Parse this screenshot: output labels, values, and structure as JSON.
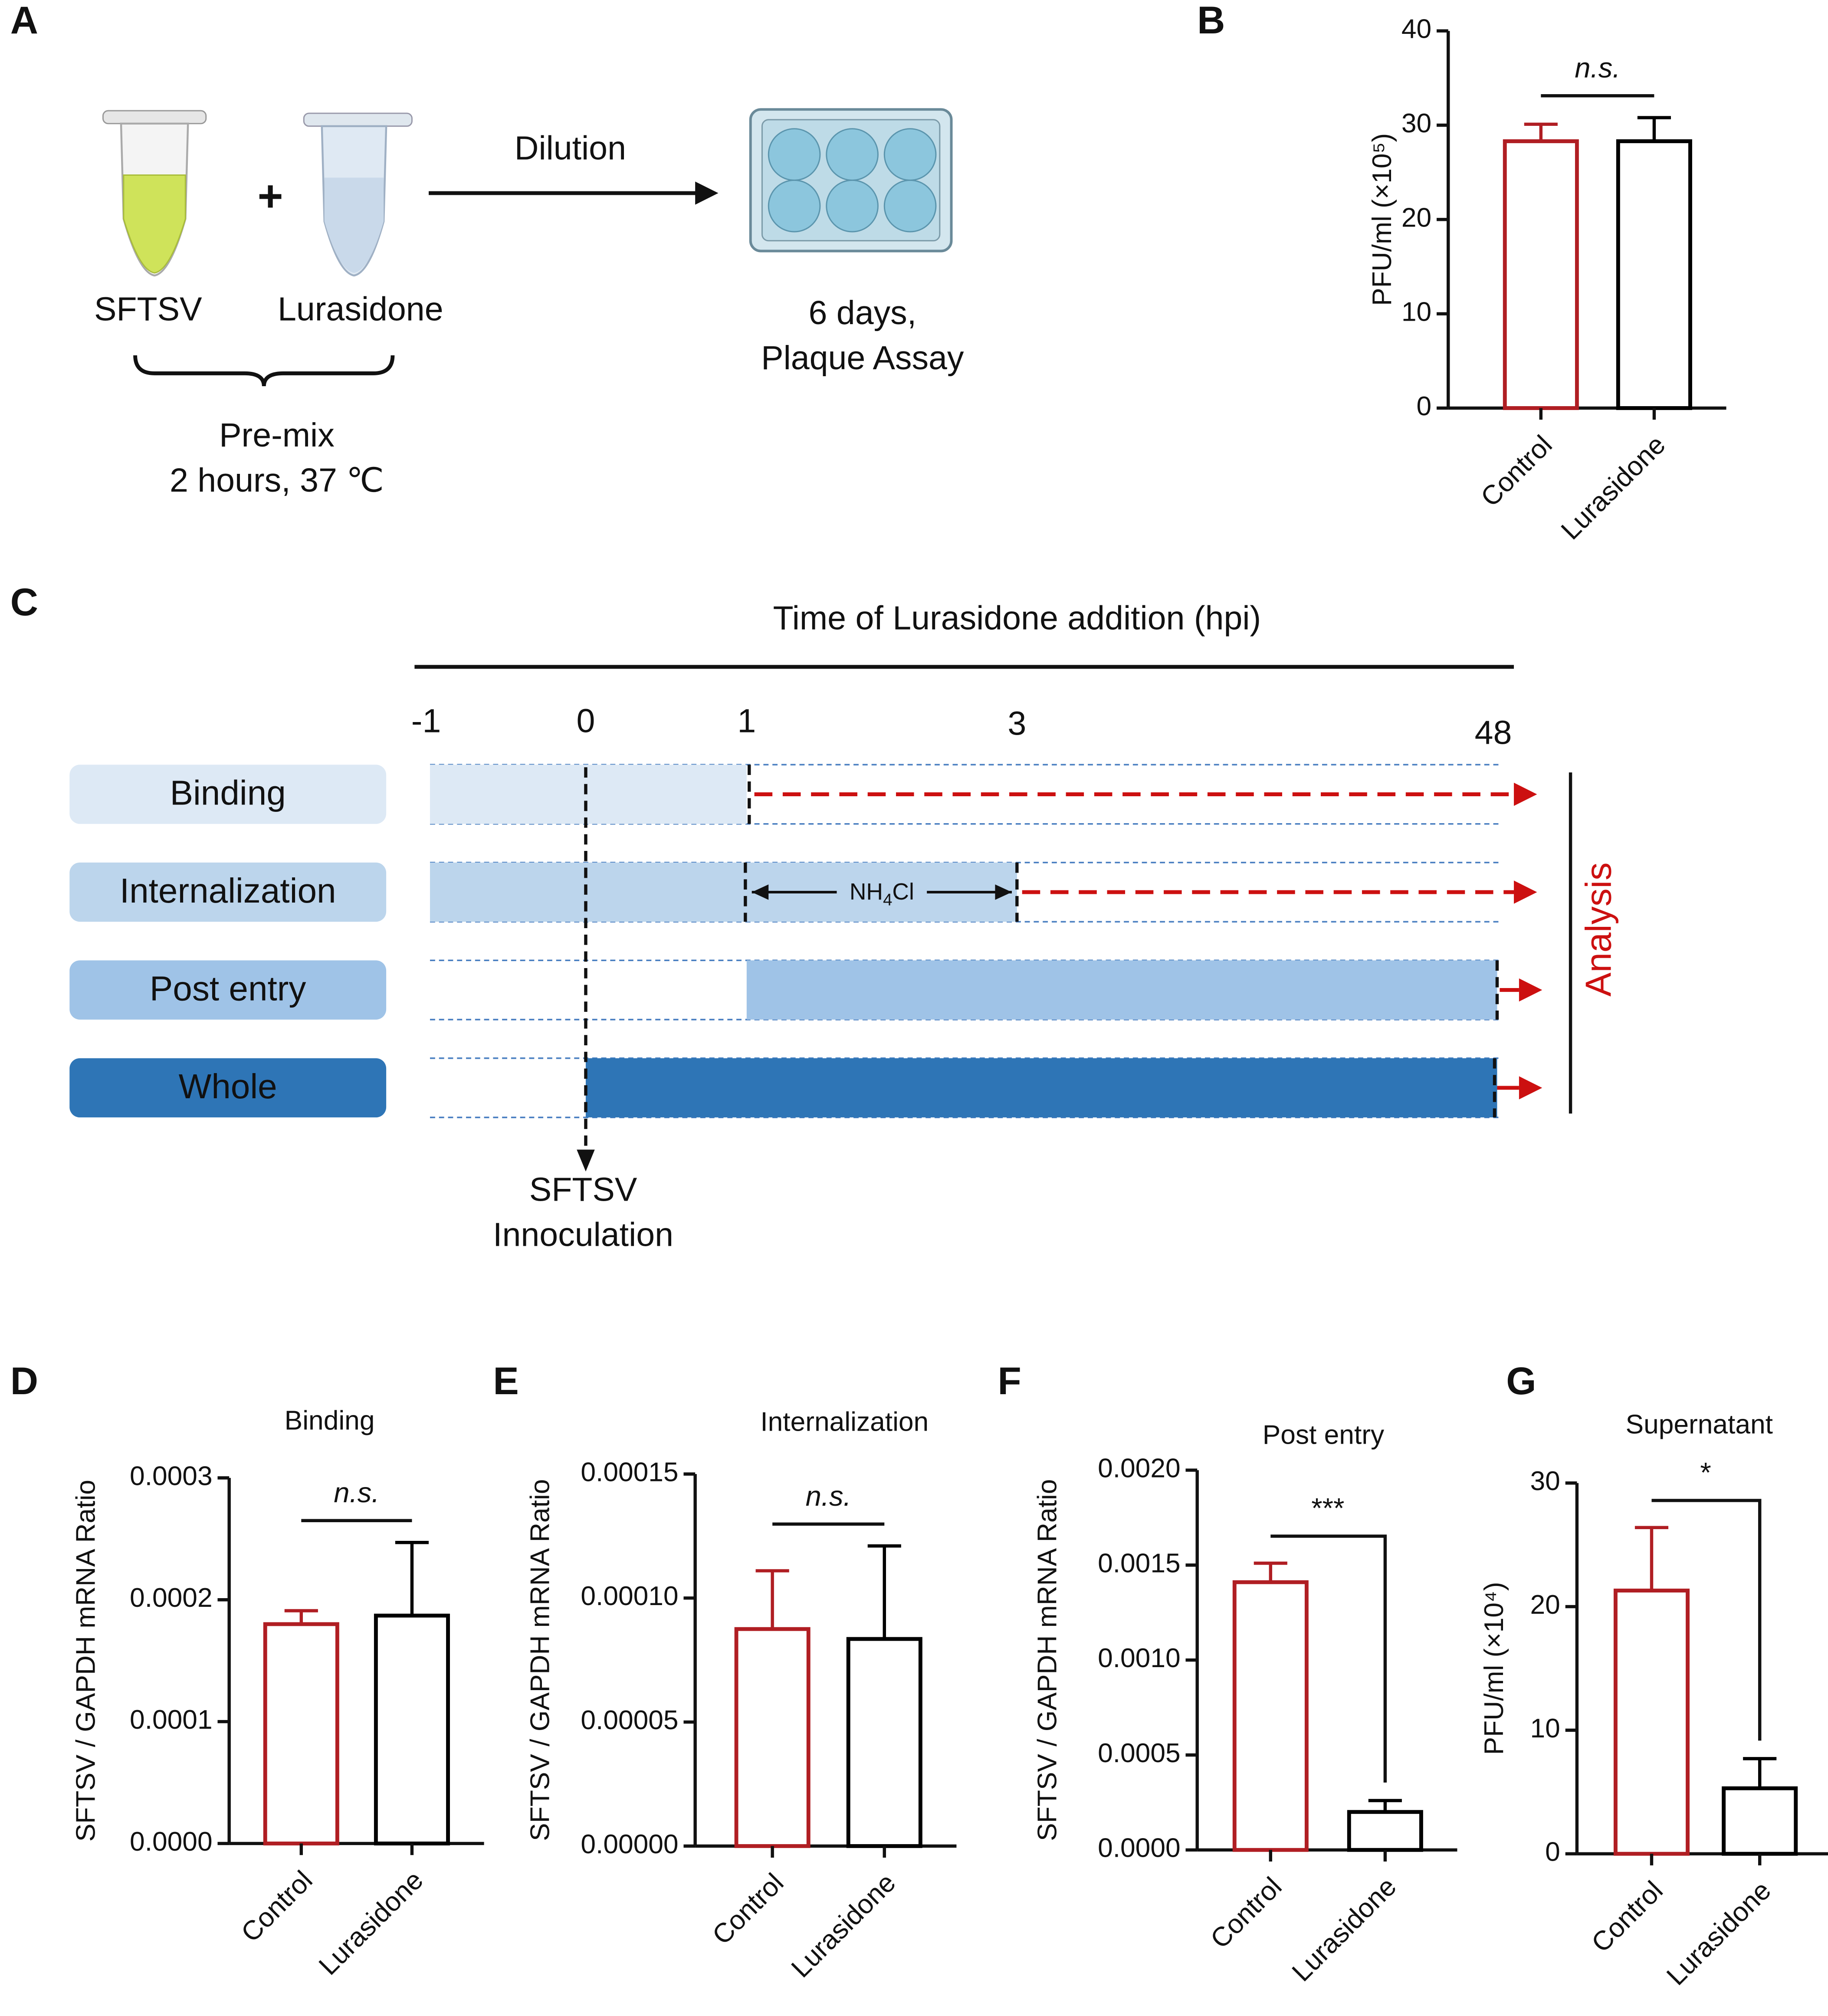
{
  "panel_labels": [
    "A",
    "B",
    "C",
    "D",
    "E",
    "F",
    "G"
  ],
  "panel_a": {
    "tube1": "SFTSV",
    "tube2": "Lurasidone",
    "plus": "+",
    "arrow_label": "Dilution",
    "result": [
      "6 days,",
      "Plaque Assay"
    ],
    "premix": [
      "Pre-mix",
      "2 hours, 37 ℃"
    ]
  },
  "panel_c": {
    "title": "Time of Lurasidone addition (hpi)",
    "timepoints": [
      "-1",
      "0",
      "1",
      "3",
      "48"
    ],
    "rows": [
      "Binding",
      "Internalization",
      "Post entry",
      "Whole"
    ],
    "nh4cl": [
      "NH",
      "4",
      "Cl"
    ],
    "analysis": "Analysis",
    "inoculation": [
      "SFTSV",
      "Innoculation"
    ]
  },
  "chart_data": [
    {
      "type": "bar",
      "ylabel": "PFU/ml (×10⁵)",
      "categories": [
        "Control",
        "Lurasidone"
      ],
      "values": [
        28.3,
        28.3
      ],
      "errors": [
        1.8,
        2.5
      ],
      "colors": [
        "#b01e23",
        "#000000"
      ],
      "ylim": [
        0,
        40
      ],
      "yticks": [
        0,
        10,
        20,
        30,
        40
      ],
      "annotation": "n.s.",
      "bracket_style": "line"
    },
    {
      "type": "bar",
      "title": "Binding",
      "ylabel": "SFTSV / GAPDH mRNA Ratio",
      "categories": [
        "Control",
        "Lurasidone"
      ],
      "values": [
        0.00018,
        0.000187
      ],
      "errors": [
        1.1e-05,
        6e-05
      ],
      "colors": [
        "#b01e23",
        "#000000"
      ],
      "ylim": [
        0,
        0.0003
      ],
      "yticks": [
        {
          "value": 0,
          "label": "0.0000"
        },
        {
          "value": 0.0001,
          "label": "0.0001"
        },
        {
          "value": 0.0002,
          "label": "0.0002"
        },
        {
          "value": 0.0003,
          "label": "0.0003"
        }
      ],
      "annotation": "n.s.",
      "bracket_style": "line"
    },
    {
      "type": "bar",
      "title": "Internalization",
      "ylabel": "SFTSV / GAPDH mRNA Ratio",
      "categories": [
        "Control",
        "Lurasidone"
      ],
      "values": [
        8.75e-05,
        8.35e-05
      ],
      "errors": [
        2.35e-05,
        3.75e-05
      ],
      "colors": [
        "#b01e23",
        "#000000"
      ],
      "ylim": [
        0,
        0.00015
      ],
      "yticks": [
        {
          "value": 0,
          "label": "0.00000"
        },
        {
          "value": 5e-05,
          "label": "0.00005"
        },
        {
          "value": 0.0001,
          "label": "0.00010"
        },
        {
          "value": 0.00015,
          "label": "0.00015"
        }
      ],
      "annotation": "n.s.",
      "bracket_style": "line"
    },
    {
      "type": "bar",
      "title": "Post entry",
      "ylabel": "SFTSV / GAPDH mRNA Ratio",
      "categories": [
        "Control",
        "Lurasidone"
      ],
      "values": [
        0.00141,
        0.0002
      ],
      "errors": [
        0.0001,
        6e-05
      ],
      "colors": [
        "#b01e23",
        "#000000"
      ],
      "ylim": [
        0,
        0.002
      ],
      "yticks": [
        {
          "value": 0,
          "label": "0.0000"
        },
        {
          "value": 0.0005,
          "label": "0.0005"
        },
        {
          "value": 0.001,
          "label": "0.0010"
        },
        {
          "value": 0.0015,
          "label": "0.0015"
        },
        {
          "value": 0.002,
          "label": "0.0020"
        }
      ],
      "annotation": "***",
      "bracket_style": "drop"
    },
    {
      "type": "bar",
      "title": "Supernatant",
      "ylabel": "PFU/ml (×10⁴)",
      "categories": [
        "Control",
        "Lurasidone"
      ],
      "values": [
        21.3,
        5.3
      ],
      "errors": [
        5.1,
        2.4
      ],
      "colors": [
        "#b01e23",
        "#000000"
      ],
      "ylim": [
        0,
        30
      ],
      "yticks": [
        0,
        10,
        20,
        30
      ],
      "annotation": "*",
      "bracket_style": "drop"
    }
  ]
}
